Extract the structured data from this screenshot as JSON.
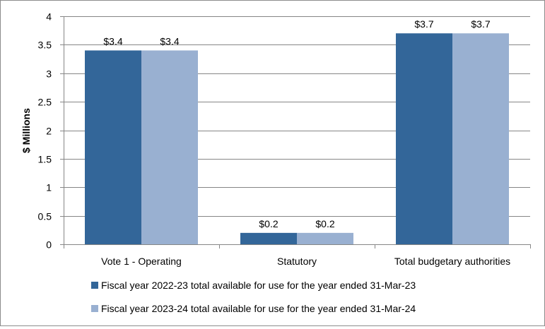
{
  "chart_data": {
    "type": "bar",
    "categories": [
      "Vote 1 - Operating",
      "Statutory",
      "Total budgetary authorities"
    ],
    "series": [
      {
        "name": "Fiscal year 2022-23 total available for use for the year ended 31-Mar-23",
        "values": [
          3.4,
          0.2,
          3.7
        ],
        "labels": [
          "$3.4",
          "$0.2",
          "$3.7"
        ],
        "color": "#336699"
      },
      {
        "name": "Fiscal year 2023-24 total available for use for the year ended 31-Mar-24",
        "values": [
          3.4,
          0.2,
          3.7
        ],
        "labels": [
          "$3.4",
          "$0.2",
          "$3.7"
        ],
        "color": "#99B0D1"
      }
    ],
    "title": "",
    "xlabel": "",
    "ylabel": "$ Millions",
    "ylim": [
      0,
      4
    ],
    "yticks": [
      "0",
      "0.5",
      "1",
      "1.5",
      "2",
      "2.5",
      "3",
      "3.5",
      "4"
    ],
    "grid": true,
    "legend_position": "bottom"
  }
}
